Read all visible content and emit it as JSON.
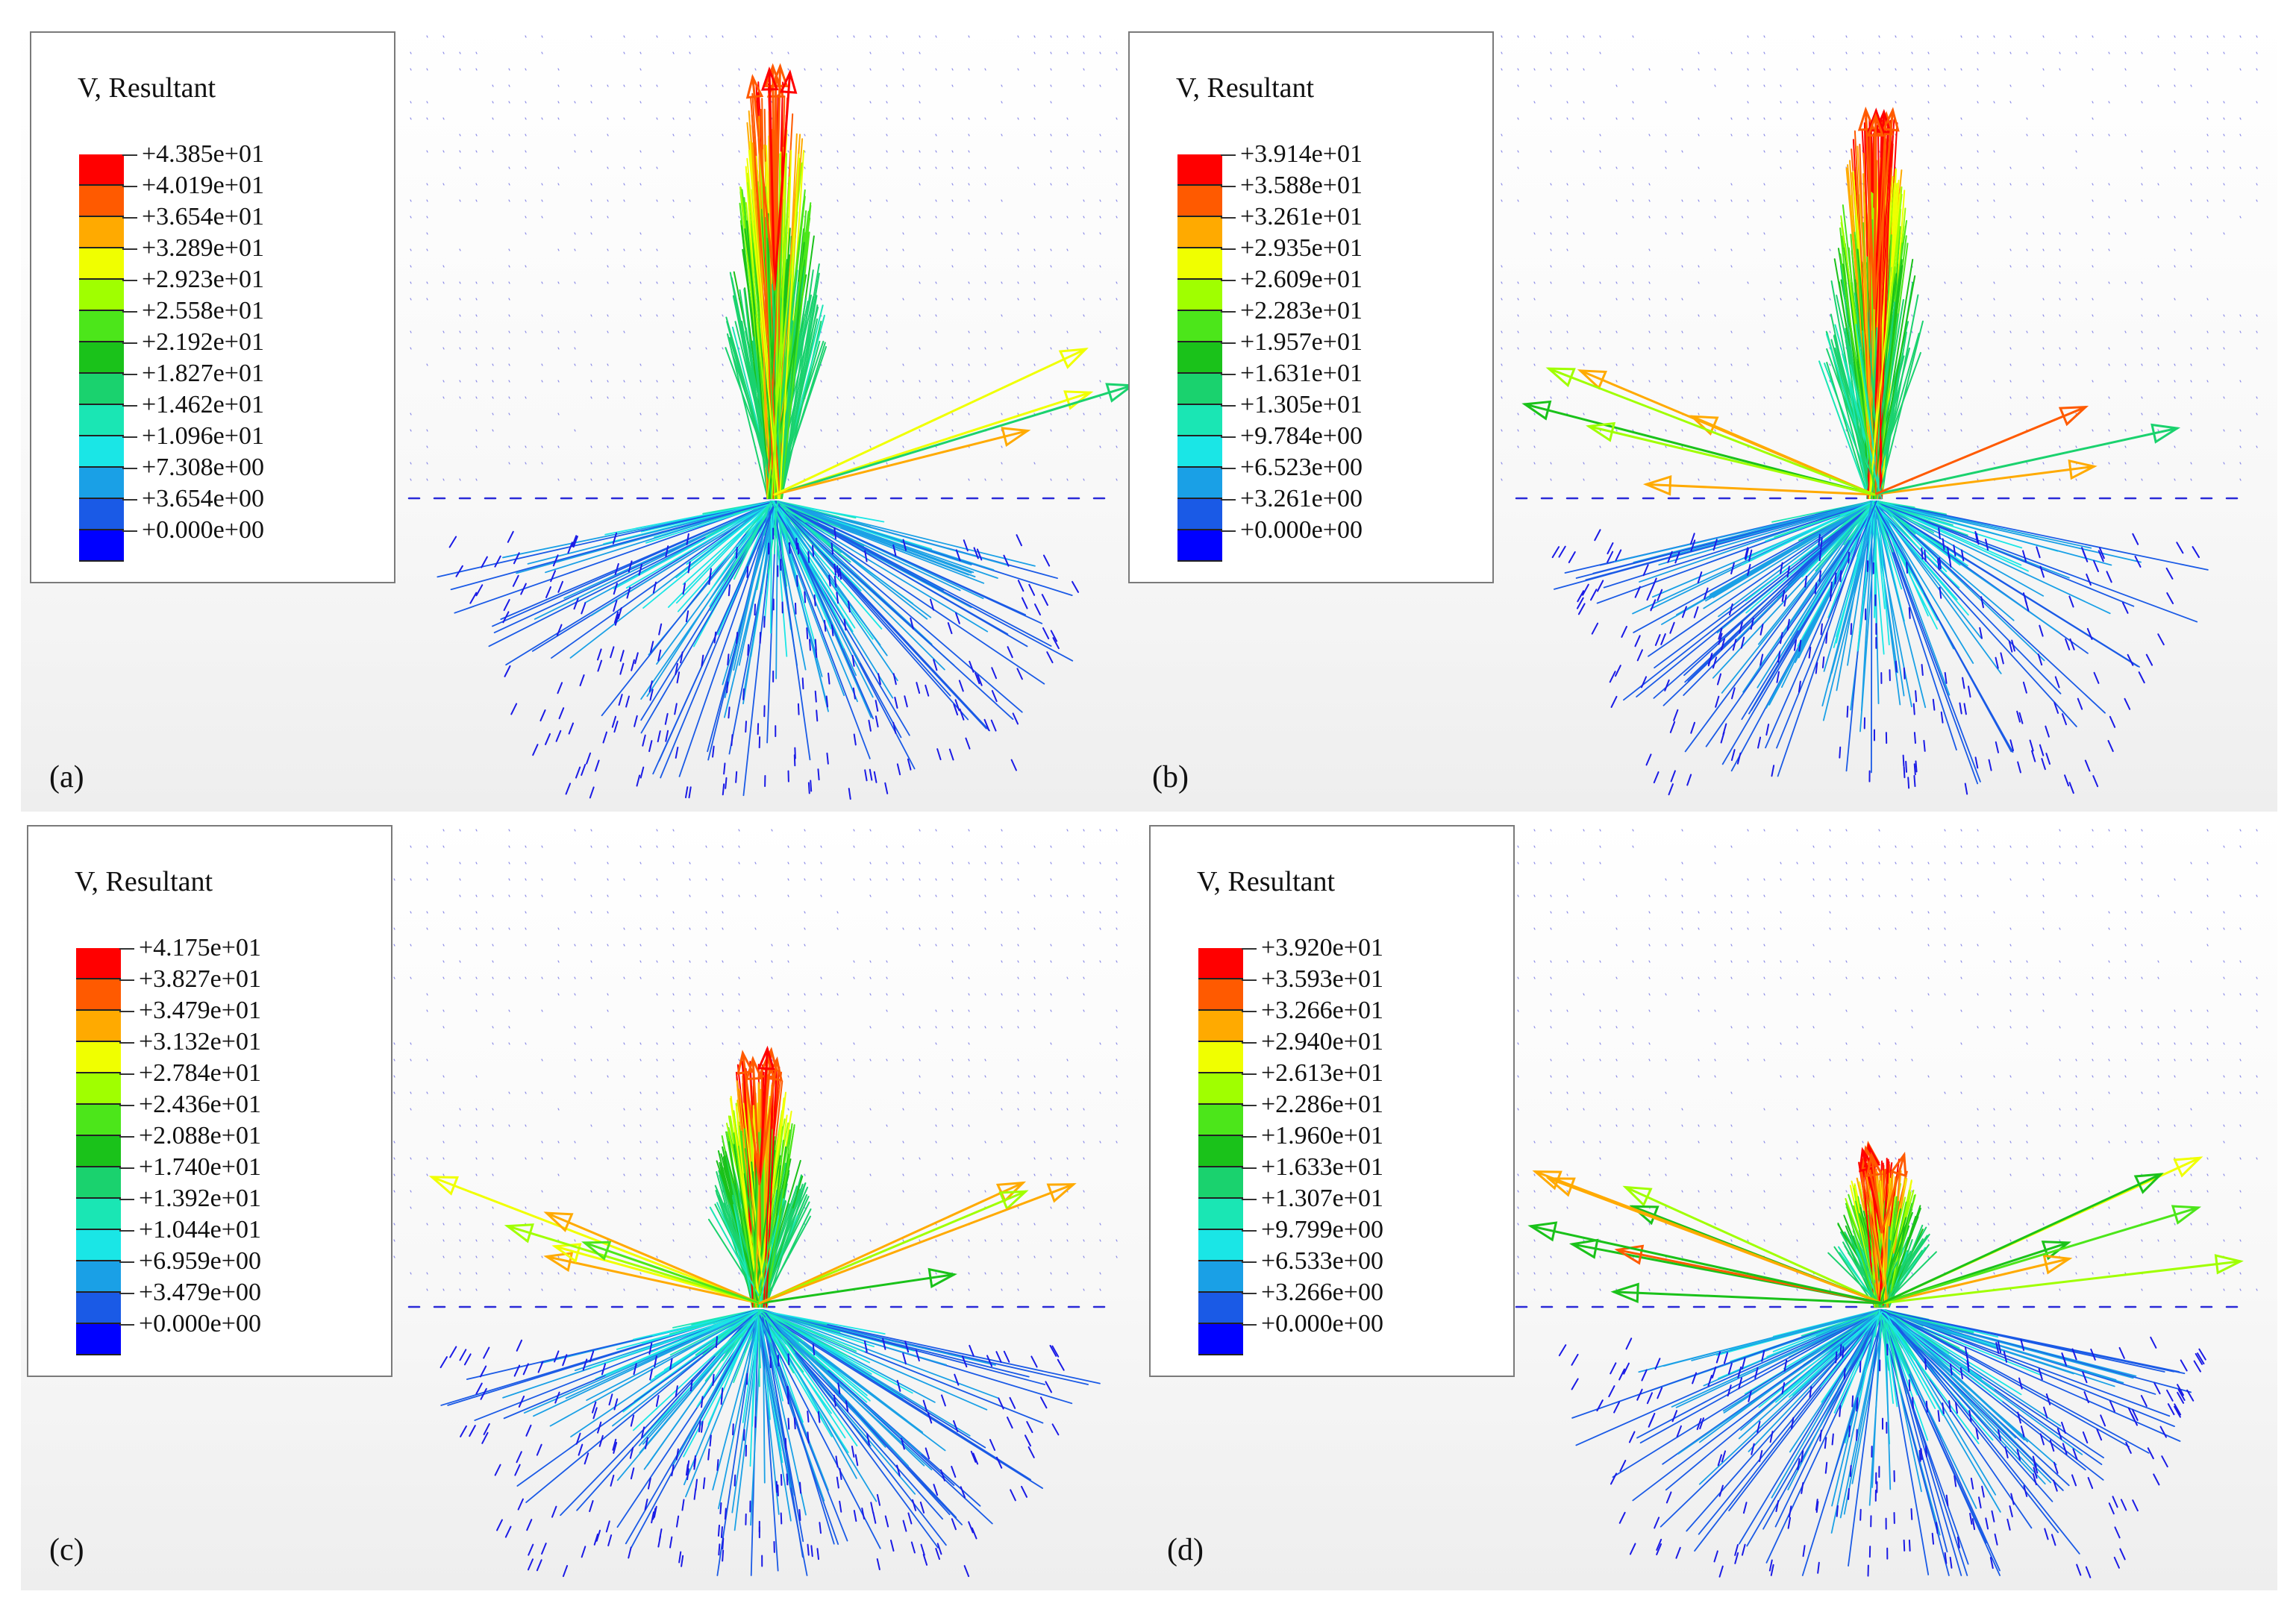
{
  "legend_colors": [
    "#ff0000",
    "#ff5a00",
    "#ffaa00",
    "#f0ff00",
    "#a0ff00",
    "#4ce61a",
    "#1ac21a",
    "#1ad26e",
    "#1ae6b4",
    "#1ae6e6",
    "#1aa0e6",
    "#1a5ae6",
    "#0000ff"
  ],
  "panels": [
    {
      "id": "a",
      "label": "(a)",
      "legend_title": "V, Resultant",
      "values": [
        "+4.385e+01",
        "+4.019e+01",
        "+3.654e+01",
        "+3.289e+01",
        "+2.923e+01",
        "+2.558e+01",
        "+2.192e+01",
        "+1.827e+01",
        "+1.462e+01",
        "+1.096e+01",
        "+7.308e+00",
        "+3.654e+00",
        "+0.000e+00"
      ]
    },
    {
      "id": "b",
      "label": "(b)",
      "legend_title": "V, Resultant",
      "values": [
        "+3.914e+01",
        "+3.588e+01",
        "+3.261e+01",
        "+2.935e+01",
        "+2.609e+01",
        "+2.283e+01",
        "+1.957e+01",
        "+1.631e+01",
        "+1.305e+01",
        "+9.784e+00",
        "+6.523e+00",
        "+3.261e+00",
        "+0.000e+00"
      ]
    },
    {
      "id": "c",
      "label": "(c)",
      "legend_title": "V, Resultant",
      "values": [
        "+4.175e+01",
        "+3.827e+01",
        "+3.479e+01",
        "+3.132e+01",
        "+2.784e+01",
        "+2.436e+01",
        "+2.088e+01",
        "+1.740e+01",
        "+1.392e+01",
        "+1.044e+01",
        "+6.959e+00",
        "+3.479e+00",
        "+0.000e+00"
      ]
    },
    {
      "id": "d",
      "label": "(d)",
      "legend_title": "V, Resultant",
      "values": [
        "+3.920e+01",
        "+3.593e+01",
        "+3.266e+01",
        "+2.940e+01",
        "+2.613e+01",
        "+2.286e+01",
        "+1.960e+01",
        "+1.633e+01",
        "+1.307e+01",
        "+9.799e+00",
        "+6.533e+00",
        "+3.266e+00",
        "+0.000e+00"
      ]
    }
  ]
}
